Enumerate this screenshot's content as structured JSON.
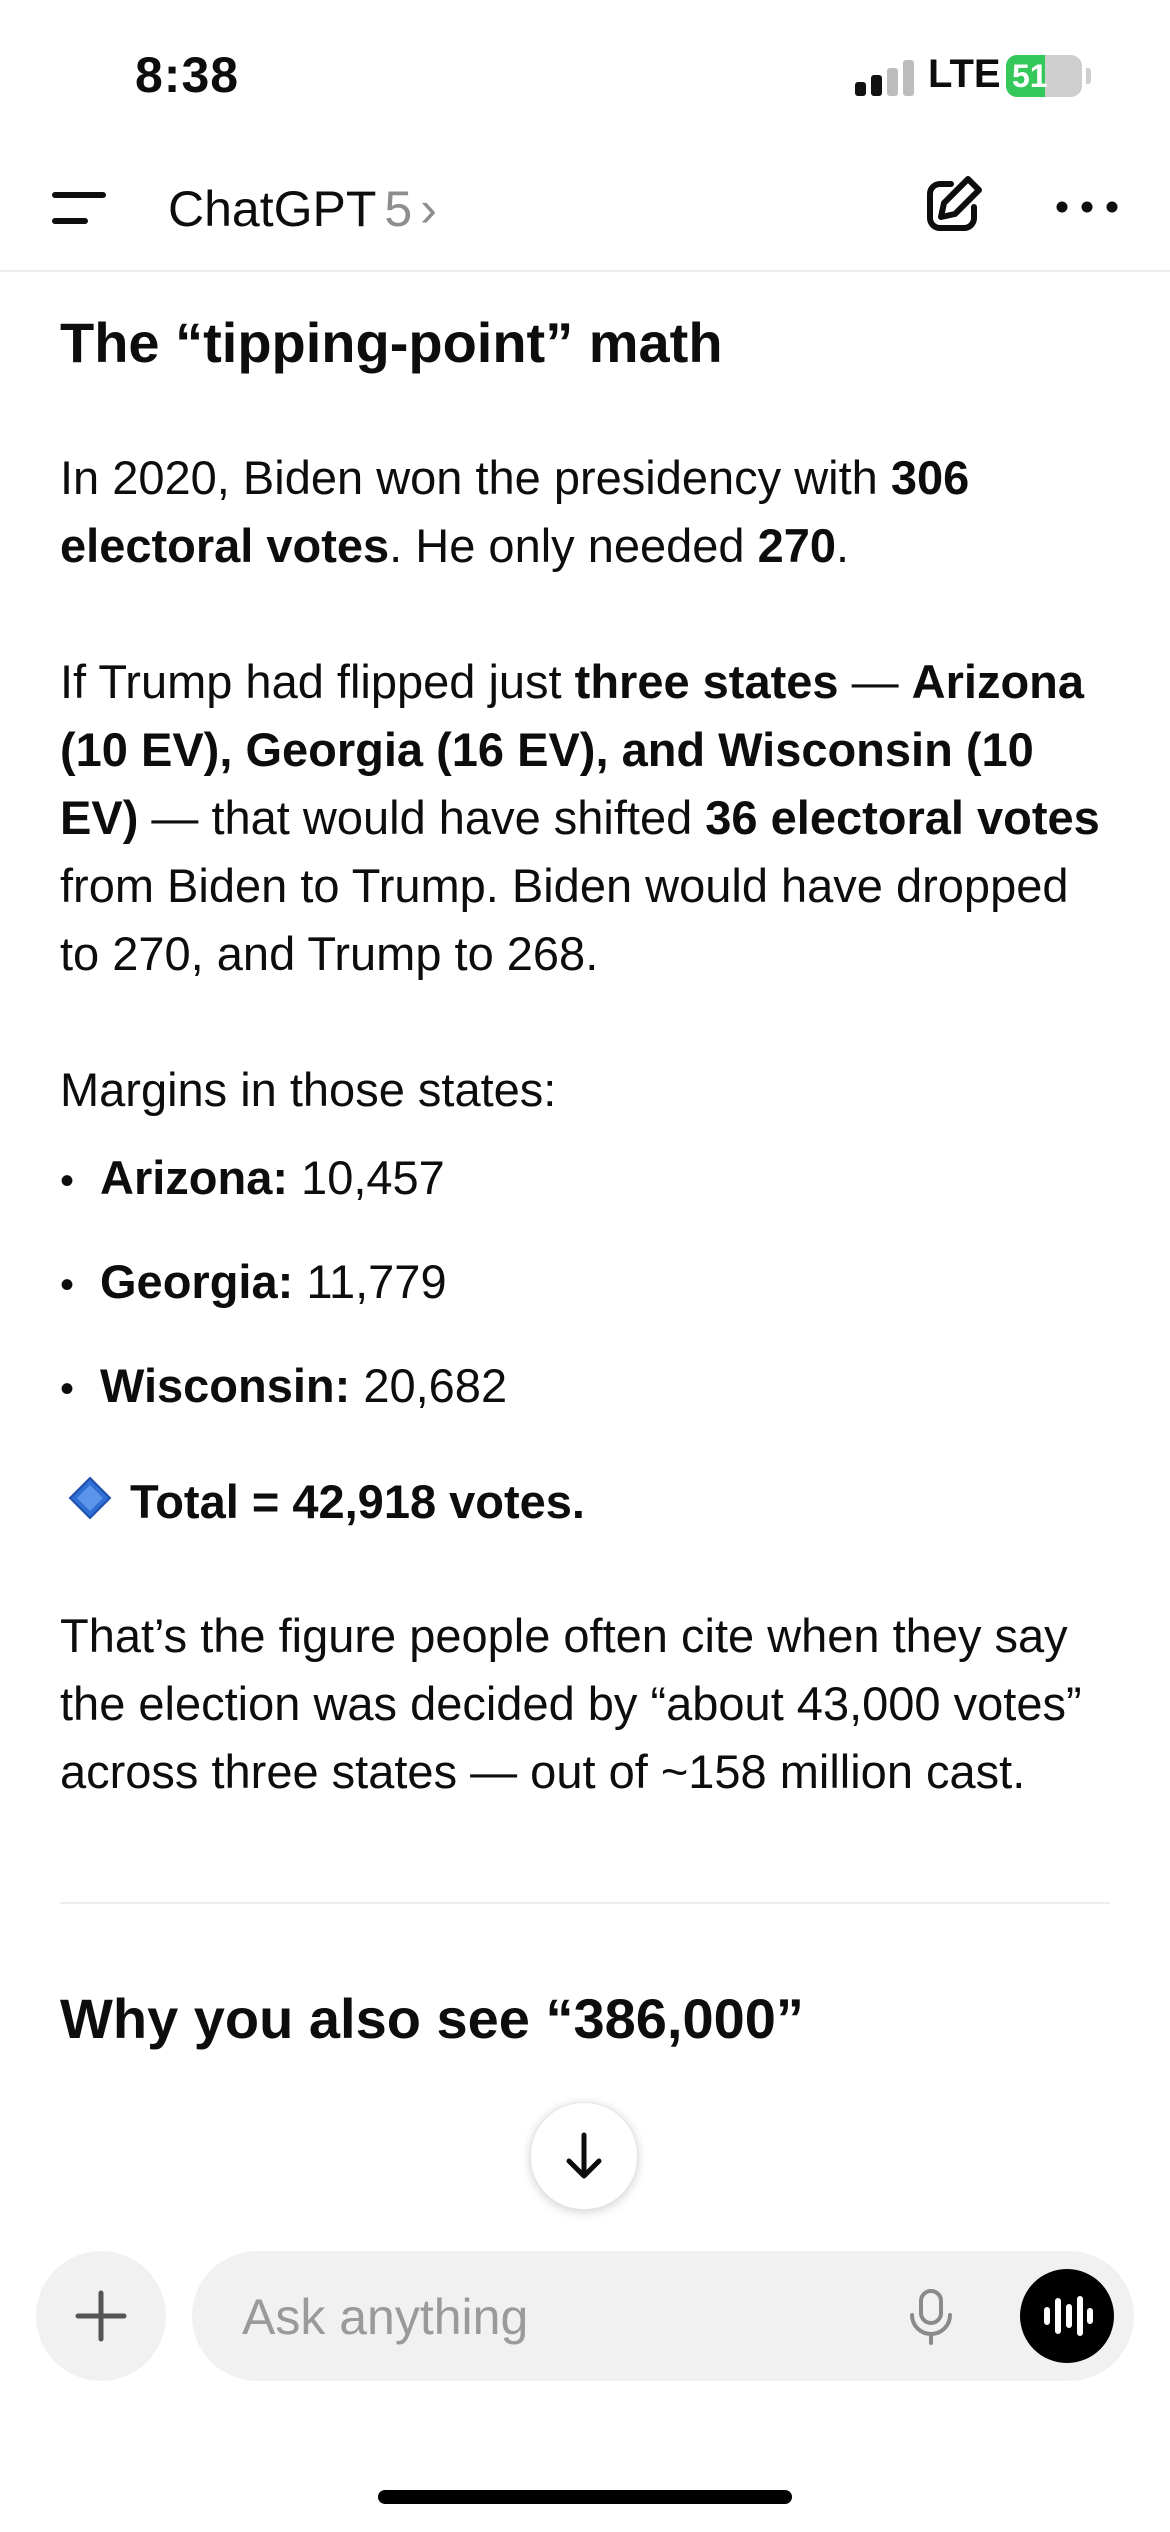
{
  "status": {
    "time": "8:38",
    "network": "LTE",
    "battery": "51",
    "battery_level": 0.51
  },
  "header": {
    "title": "ChatGPT",
    "version": "5",
    "chevron": "›",
    "icons": {
      "menu": "menu-icon",
      "new_chat": "compose-icon",
      "more": "more-icon"
    }
  },
  "content": {
    "heading": "The “tipping-point” math",
    "p1": {
      "a": "In 2020, Biden won the presidency with ",
      "b": "306 electoral votes",
      "c": ". He only needed ",
      "d": "270",
      "e": "."
    },
    "p2": {
      "a": "If Trump had flipped just ",
      "b": "three states",
      "c": " — ",
      "d": "Arizona (10 EV), Georgia (16 EV), and Wisconsin (10 EV)",
      "e": " — that would have shifted ",
      "f": "36 electoral votes",
      "g": " from Biden to Trump. Biden would have dropped to 270, and Trump to 268."
    },
    "margins_intro": "Margins in those states:",
    "bullets": [
      {
        "label": "Arizona:",
        "value": " 10,457"
      },
      {
        "label": "Georgia:",
        "value": " 11,779"
      },
      {
        "label": "Wisconsin:",
        "value": " 20,682"
      }
    ],
    "total": "Total = 42,918 votes.",
    "p3": "That’s the figure people often cite when they say the election was decided by “about 43,000 votes” across three states — out of ~158 million cast.",
    "next_heading": "Why you also see “386,000”"
  },
  "composer": {
    "placeholder": "Ask anything",
    "icons": {
      "add": "plus-icon",
      "mic": "microphone-icon",
      "voice": "voice-mode-icon"
    }
  },
  "colors": {
    "diamond": "#2f6fd6",
    "battery": "#34c759",
    "pill": "#f1f1f1"
  }
}
